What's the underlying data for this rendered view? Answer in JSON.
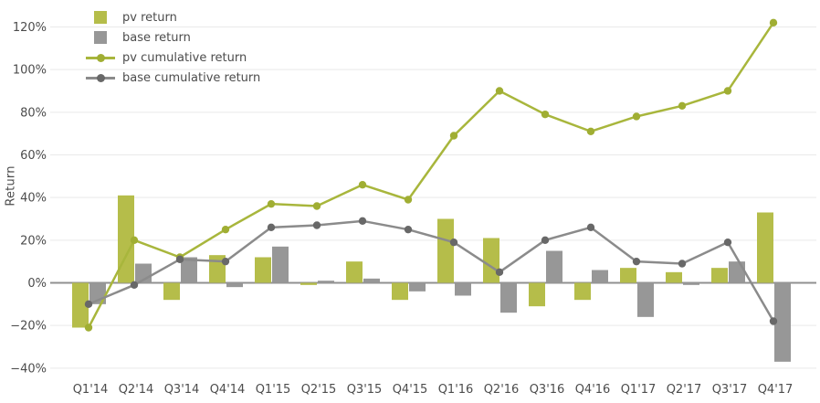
{
  "chart": {
    "ylabel": "Return"
  },
  "chart_data": {
    "type": "combo-bar-line",
    "title": "",
    "xlabel": "",
    "ylabel": "Return",
    "categories": [
      "Q1'14",
      "Q2'14",
      "Q3'14",
      "Q4'14",
      "Q1'15",
      "Q2'15",
      "Q3'15",
      "Q4'15",
      "Q1'16",
      "Q2'16",
      "Q3'16",
      "Q4'16",
      "Q1'17",
      "Q2'17",
      "Q3'17",
      "Q4'17"
    ],
    "series": [
      {
        "name": "pv return",
        "type": "bar",
        "color": "#b5bd4a",
        "values": [
          -21,
          41,
          -8,
          13,
          12,
          -1,
          10,
          -8,
          30,
          21,
          -11,
          -8,
          7,
          5,
          7,
          33
        ]
      },
      {
        "name": "base return",
        "type": "bar",
        "color": "#979797",
        "values": [
          -10,
          9,
          12,
          -2,
          17,
          1,
          2,
          -4,
          -6,
          -14,
          15,
          6,
          -16,
          -1,
          10,
          -37
        ]
      },
      {
        "name": "pv cumulative return",
        "type": "line",
        "color": "#a8b63c",
        "dot_color": "#a0ae33",
        "values": [
          -21,
          20,
          12,
          25,
          37,
          36,
          46,
          39,
          69,
          90,
          79,
          71,
          78,
          83,
          90,
          122
        ]
      },
      {
        "name": "base cumulative return",
        "type": "line",
        "color": "#8b8b8b",
        "dot_color": "#686868",
        "values": [
          -10,
          -1,
          11,
          10,
          26,
          27,
          29,
          25,
          19,
          5,
          20,
          26,
          10,
          9,
          19,
          -18
        ]
      }
    ],
    "y_ticks": [
      -40,
      -20,
      0,
      20,
      40,
      60,
      80,
      100,
      120
    ],
    "y_tick_suffix": "%",
    "ylim": [
      -45,
      130
    ],
    "grid": true,
    "legend_position": "top-left",
    "colors": {
      "grid": "#e9e9e9",
      "zero_axis": "#909090",
      "tick_text": "#4c4c4c"
    }
  }
}
